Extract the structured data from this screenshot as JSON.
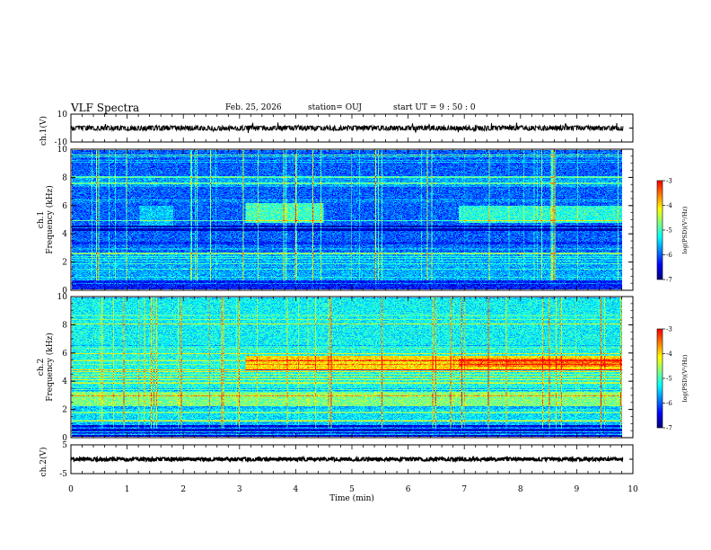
{
  "header": {
    "title": "VLF Spectra",
    "date": "Feb. 25, 2026",
    "station": "station= OUJ",
    "start_ut": "start  UT =  9 : 50 : 0"
  },
  "chart_data": [
    {
      "type": "line",
      "name": "waveform-ch1",
      "ylabel": "ch.1(V)",
      "ylim": [
        -10,
        10
      ],
      "yticks": [
        "10",
        "-10"
      ],
      "xlim": [
        0,
        10
      ],
      "data_span_min": [
        0,
        9.83
      ],
      "baseline": 0,
      "amplitude": 1.2
    },
    {
      "type": "heatmap",
      "name": "spectrogram-ch1",
      "ylabel_line1": "ch.1",
      "ylabel_line2": "Frequency (kHz)",
      "ylim": [
        0,
        10
      ],
      "yticks": [
        "0",
        "2",
        "4",
        "6",
        "8",
        "10"
      ],
      "xlim": [
        0,
        10
      ],
      "data_span_min": [
        0,
        9.83
      ],
      "colorbar": {
        "label": "log(PSD)(V²/Hz)",
        "range": [
          -7,
          -3
        ],
        "ticks": [
          "-7",
          "-6",
          "-5",
          "-4",
          "-3"
        ]
      }
    },
    {
      "type": "heatmap",
      "name": "spectrogram-ch2",
      "ylabel_line1": "ch.2",
      "ylabel_line2": "Frequency (kHz)",
      "ylim": [
        0,
        10
      ],
      "yticks": [
        "0",
        "2",
        "4",
        "6",
        "8",
        "10"
      ],
      "xlim": [
        0,
        10
      ],
      "data_span_min": [
        0,
        9.83
      ],
      "colorbar": {
        "label": "log(PSD)(V²/Hz)",
        "range": [
          -7,
          -3
        ],
        "ticks": [
          "-7",
          "-6",
          "-5",
          "-4",
          "-3"
        ]
      }
    },
    {
      "type": "line",
      "name": "waveform-ch2",
      "ylabel": "ch.2(V)",
      "ylim": [
        -5,
        5
      ],
      "yticks": [
        "5",
        "-5"
      ],
      "xlim": [
        0,
        10
      ],
      "data_span_min": [
        0,
        9.83
      ],
      "baseline": 0,
      "amplitude": 0.4
    }
  ],
  "x_axis": {
    "label": "Time  (min)",
    "ticks": [
      "0",
      "1",
      "2",
      "3",
      "4",
      "5",
      "6",
      "7",
      "8",
      "9",
      "10"
    ]
  },
  "colors": {
    "background": "#ffffff",
    "trace": "#000000",
    "colormap": [
      "#00007f",
      "#0000ff",
      "#0080ff",
      "#00ffff",
      "#80ff80",
      "#ffff00",
      "#ff8000",
      "#ff0000",
      "#ffffff"
    ]
  }
}
